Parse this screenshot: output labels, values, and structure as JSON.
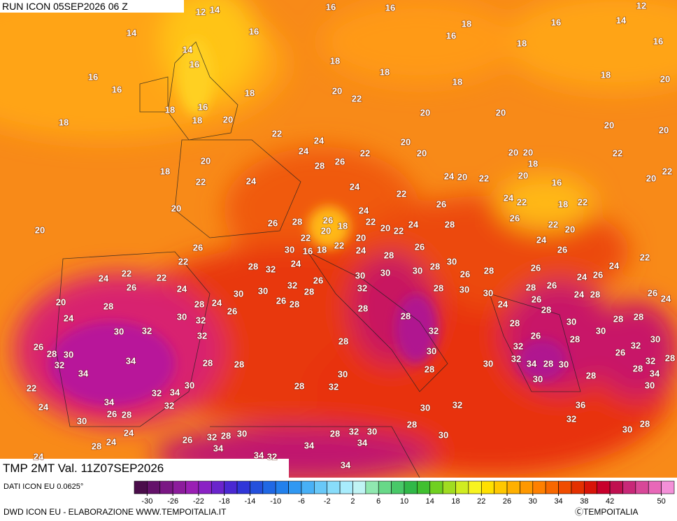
{
  "header": {
    "run": "RUN ICON 05SEP2026 06 Z",
    "field": "TMP 2MT Val. 11Z07SEP2026"
  },
  "footer": {
    "data_source": "DATI ICON EU 0.0625°",
    "credits": "DWD ICON EU - ELABORAZIONE WWW.TEMPOITALIA.IT",
    "copyright": "ⒸTEMPOITALIA"
  },
  "colorbar": {
    "lim": [
      -32,
      52
    ],
    "colors": [
      "#4b0d4b",
      "#64126a",
      "#7a1784",
      "#8c1c9c",
      "#9a20b4",
      "#8a22c4",
      "#6a24cc",
      "#4a28d2",
      "#3036d8",
      "#2450dc",
      "#2068e4",
      "#2280ec",
      "#3098f2",
      "#48b0f6",
      "#68c8f8",
      "#88dcfa",
      "#a8ecfc",
      "#c0f4f4",
      "#90e8b0",
      "#68d888",
      "#48c868",
      "#30b848",
      "#40c030",
      "#70d020",
      "#a0dc20",
      "#d0ec20",
      "#f8f420",
      "#ffe000",
      "#ffc800",
      "#ffb000",
      "#ff9800",
      "#ff8000",
      "#f86800",
      "#f04c00",
      "#e43000",
      "#d81408",
      "#c8002c",
      "#c01050",
      "#c82878",
      "#d84898",
      "#e868b8",
      "#f490d8"
    ],
    "ticks": [
      -30,
      -26,
      -22,
      -18,
      -14,
      -10,
      -6,
      -2,
      2,
      6,
      10,
      14,
      18,
      22,
      26,
      30,
      34,
      38,
      42,
      50
    ]
  },
  "map_labels": [
    12,
    14,
    16,
    16,
    12,
    14,
    16,
    18,
    16,
    16,
    14,
    16,
    14,
    16,
    18,
    18,
    18,
    16,
    16,
    18,
    18,
    18,
    20,
    18,
    16,
    20,
    22,
    18,
    20,
    18,
    20,
    20,
    20,
    20,
    22,
    24,
    24,
    20,
    22,
    20,
    20,
    20,
    22,
    18,
    20,
    28,
    26,
    18,
    24,
    20,
    22,
    20,
    22,
    20,
    22,
    24,
    24,
    22,
    16,
    24,
    22,
    20,
    24,
    26,
    18,
    22,
    20,
    26,
    28,
    26,
    18,
    22,
    20,
    22,
    24,
    20,
    26,
    22,
    20,
    28,
    22,
    20,
    30,
    16,
    18,
    22,
    24,
    28,
    26,
    24,
    26,
    26,
    22,
    24,
    22,
    24,
    28,
    32,
    30,
    28,
    30,
    28,
    26,
    30,
    30,
    22,
    24,
    22,
    26,
    26,
    26,
    24,
    26,
    32,
    28,
    32,
    24,
    30,
    30,
    28,
    30,
    28,
    26,
    24,
    28,
    20,
    28,
    28,
    24,
    26,
    26,
    28,
    28,
    30,
    24,
    26,
    28,
    26,
    24,
    24,
    30,
    32,
    28,
    28,
    28,
    30,
    30,
    32,
    32,
    32,
    28,
    30,
    26,
    28,
    30,
    28,
    26,
    28,
    30,
    32,
    30,
    32,
    26,
    32,
    34,
    28,
    28,
    32,
    34,
    28,
    30,
    28,
    32,
    28,
    34,
    28,
    30,
    28,
    34,
    30,
    22,
    32,
    34,
    30,
    28,
    32,
    30,
    30,
    34,
    32,
    24,
    30,
    32,
    36,
    26,
    28,
    30,
    32,
    28,
    30,
    24,
    26,
    32,
    28,
    30,
    28,
    32,
    30,
    34,
    28,
    24,
    34,
    34,
    30,
    28,
    24,
    34,
    32,
    34
  ]
}
